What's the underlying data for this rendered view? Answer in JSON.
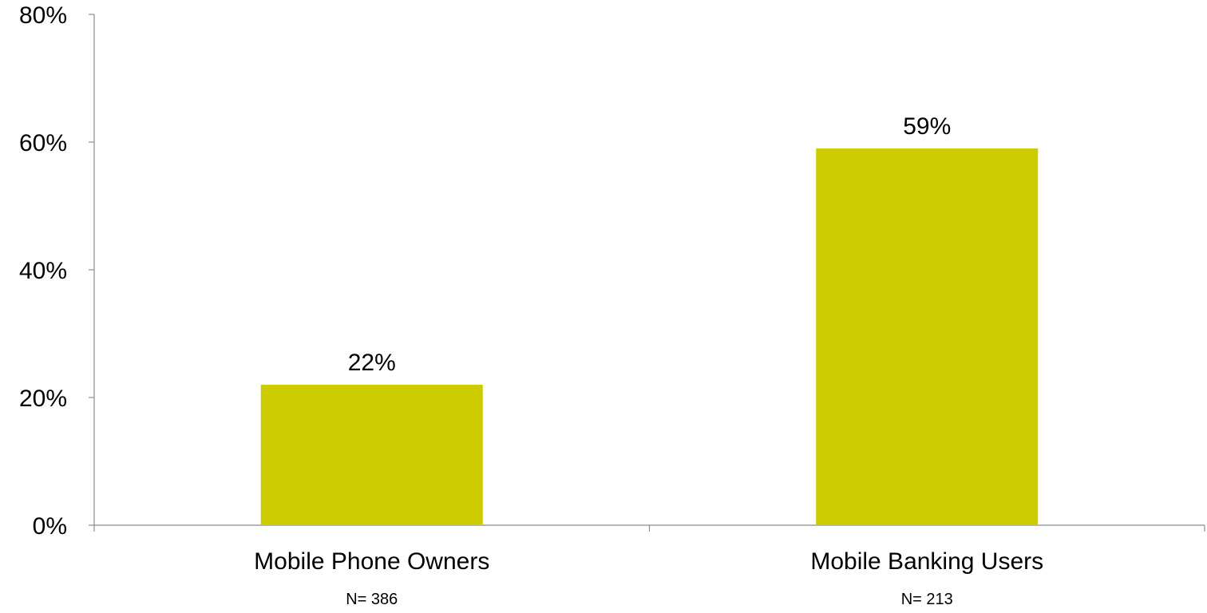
{
  "chart_data": {
    "type": "bar",
    "categories": [
      "Mobile Phone Owners",
      "Mobile Banking Users"
    ],
    "category_notes": [
      "N= 386",
      "N= 213"
    ],
    "values": [
      22,
      59
    ],
    "value_labels": [
      "22%",
      "59%"
    ],
    "title": "",
    "xlabel": "",
    "ylabel": "",
    "ylim": [
      0,
      80
    ],
    "yticks": [
      0,
      20,
      40,
      60,
      80
    ],
    "ytick_labels": [
      "0%",
      "20%",
      "40%",
      "60%",
      "80%"
    ],
    "grid": false,
    "legend": "none",
    "bar_color": "#cccc00"
  }
}
